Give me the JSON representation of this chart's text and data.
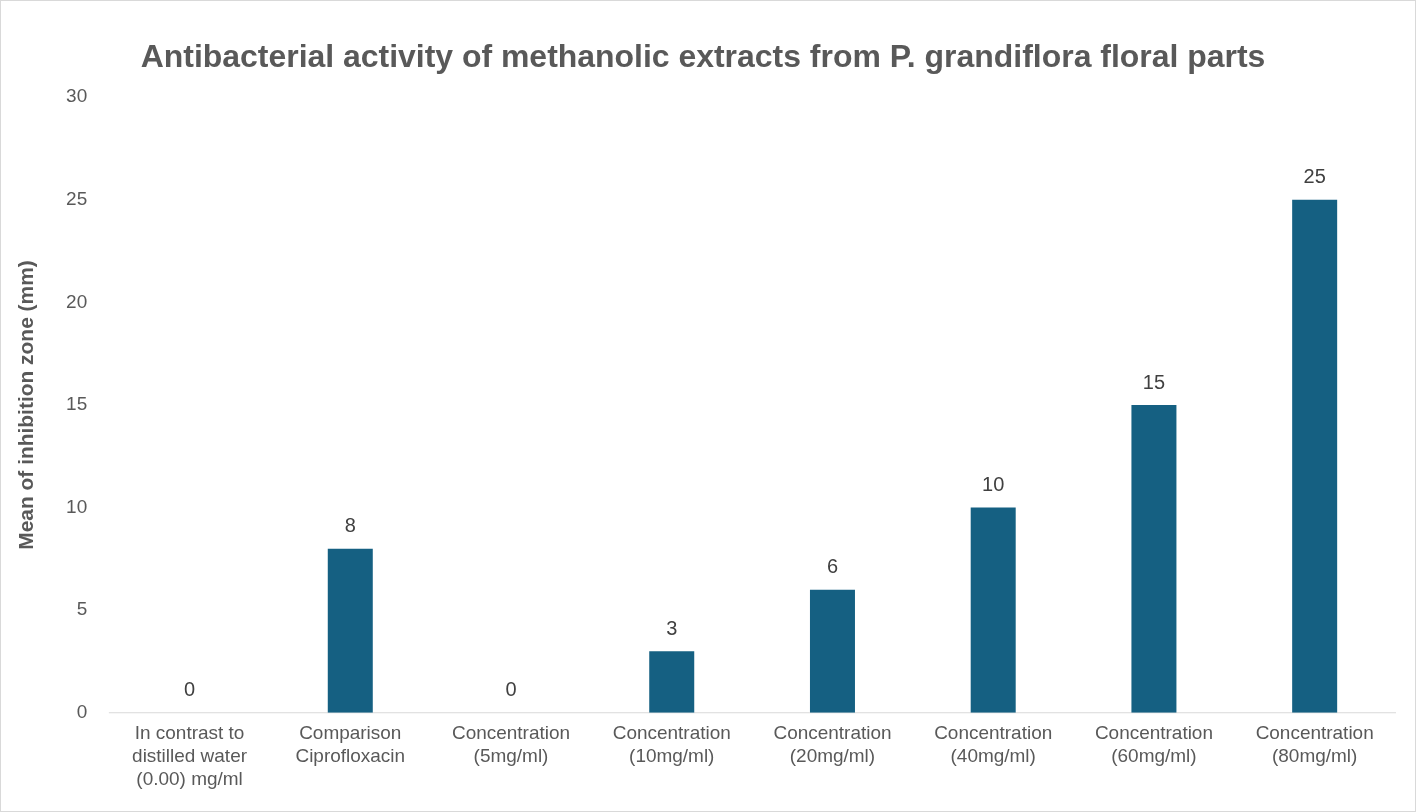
{
  "chart_data": {
    "type": "bar",
    "title": "Antibacterial activity of methanolic extracts from P. grandiflora floral parts",
    "ylabel": "Mean of inhibition zone (mm)",
    "categories": [
      "In contrast to distilled water (0.00) mg/ml",
      "Comparison Ciprofloxacin",
      "Concentration (5mg/ml)",
      "Concentration (10mg/ml)",
      "Concentration (20mg/ml)",
      "Concentration (40mg/ml)",
      "Concentration (60mg/ml)",
      "Concentration (80mg/ml)"
    ],
    "values": [
      0,
      8,
      0,
      3,
      6,
      10,
      15,
      25
    ],
    "color": "#156082",
    "ylim": [
      0,
      30
    ],
    "yticks": [
      0,
      5,
      10,
      15,
      20,
      25,
      30
    ],
    "grid": false,
    "legend": false,
    "data_labels": true
  }
}
